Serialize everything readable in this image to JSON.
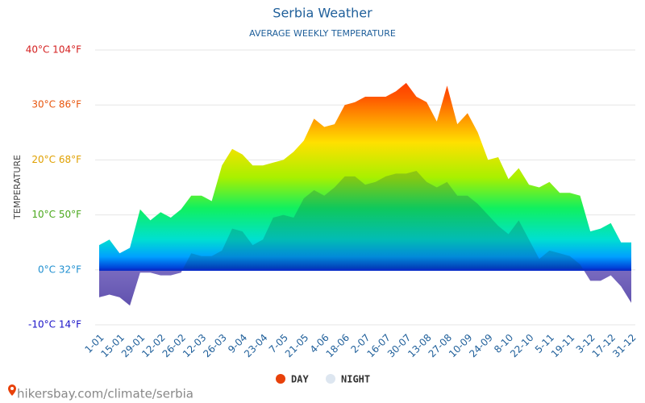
{
  "chart_data": {
    "type": "area",
    "title": "Serbia Weather",
    "subtitle": "AVERAGE WEEKLY TEMPERATURE",
    "y_label": "TEMPERATURE",
    "source": "hikersbay.com/climate/serbia",
    "categories": [
      "1-01",
      null,
      "15-01",
      null,
      "29-01",
      null,
      "12-02",
      null,
      "26-02",
      null,
      "12-03",
      null,
      "26-03",
      null,
      "9-04",
      null,
      "23-04",
      null,
      "7-05",
      null,
      "21-05",
      null,
      "4-06",
      null,
      "18-06",
      null,
      "2-07",
      null,
      "16-07",
      null,
      "30-07",
      null,
      "13-08",
      null,
      "27-08",
      null,
      "10-09",
      null,
      "24-09",
      null,
      "8-10",
      null,
      "22-10",
      null,
      "5-11",
      null,
      "19-11",
      null,
      "3-12",
      null,
      "17-12",
      null,
      "31-12"
    ],
    "series": [
      {
        "name": "DAY",
        "color": "#e8410a",
        "values": [
          4.5,
          5.5,
          3,
          4,
          11,
          9,
          10.5,
          9.5,
          11,
          13.5,
          13.5,
          12.5,
          19,
          22,
          21,
          19,
          19,
          19.5,
          20,
          21.5,
          23.5,
          27.5,
          26,
          26.5,
          30,
          30.5,
          31.5,
          31.5,
          31.5,
          32.5,
          34,
          31.5,
          30.5,
          27,
          33.5,
          26.5,
          28.5,
          25,
          20,
          20.5,
          16.5,
          18.5,
          15.5,
          15,
          16,
          14,
          14,
          13.5,
          7,
          7.5,
          8.5,
          5,
          5
        ]
      },
      {
        "name": "NIGHT",
        "color": "#dde6f0",
        "values": [
          -5,
          -4.5,
          -5,
          -6.5,
          -0.5,
          -0.5,
          -1,
          -1,
          -0.5,
          3,
          2.5,
          2.5,
          3.5,
          7.5,
          7,
          4.5,
          5.5,
          9.5,
          10,
          9.5,
          13,
          14.5,
          13.5,
          15,
          17,
          17,
          15.5,
          16,
          17,
          17.5,
          17.5,
          18,
          16,
          15,
          16,
          13.5,
          13.5,
          12,
          10,
          8,
          6.5,
          9,
          5.5,
          2,
          3.5,
          3,
          2.5,
          1,
          -2,
          -2,
          -1,
          -3,
          -6
        ]
      }
    ],
    "ylim": [
      -10,
      40
    ],
    "yticks": [
      {
        "value": -10,
        "label": "-10°C 14°F"
      },
      {
        "value": 0,
        "label": "0°C 32°F"
      },
      {
        "value": 10,
        "label": "10°C 50°F"
      },
      {
        "value": 20,
        "label": "20°C 68°F"
      },
      {
        "value": 30,
        "label": "30°C 86°F"
      },
      {
        "value": 40,
        "label": "40°C 104°F"
      }
    ],
    "ytick_colors": [
      "#1a12c8",
      "#1f8fd0",
      "#4aa81c",
      "#e0a000",
      "#e8560e",
      "#d41f1f"
    ],
    "grid": true
  }
}
